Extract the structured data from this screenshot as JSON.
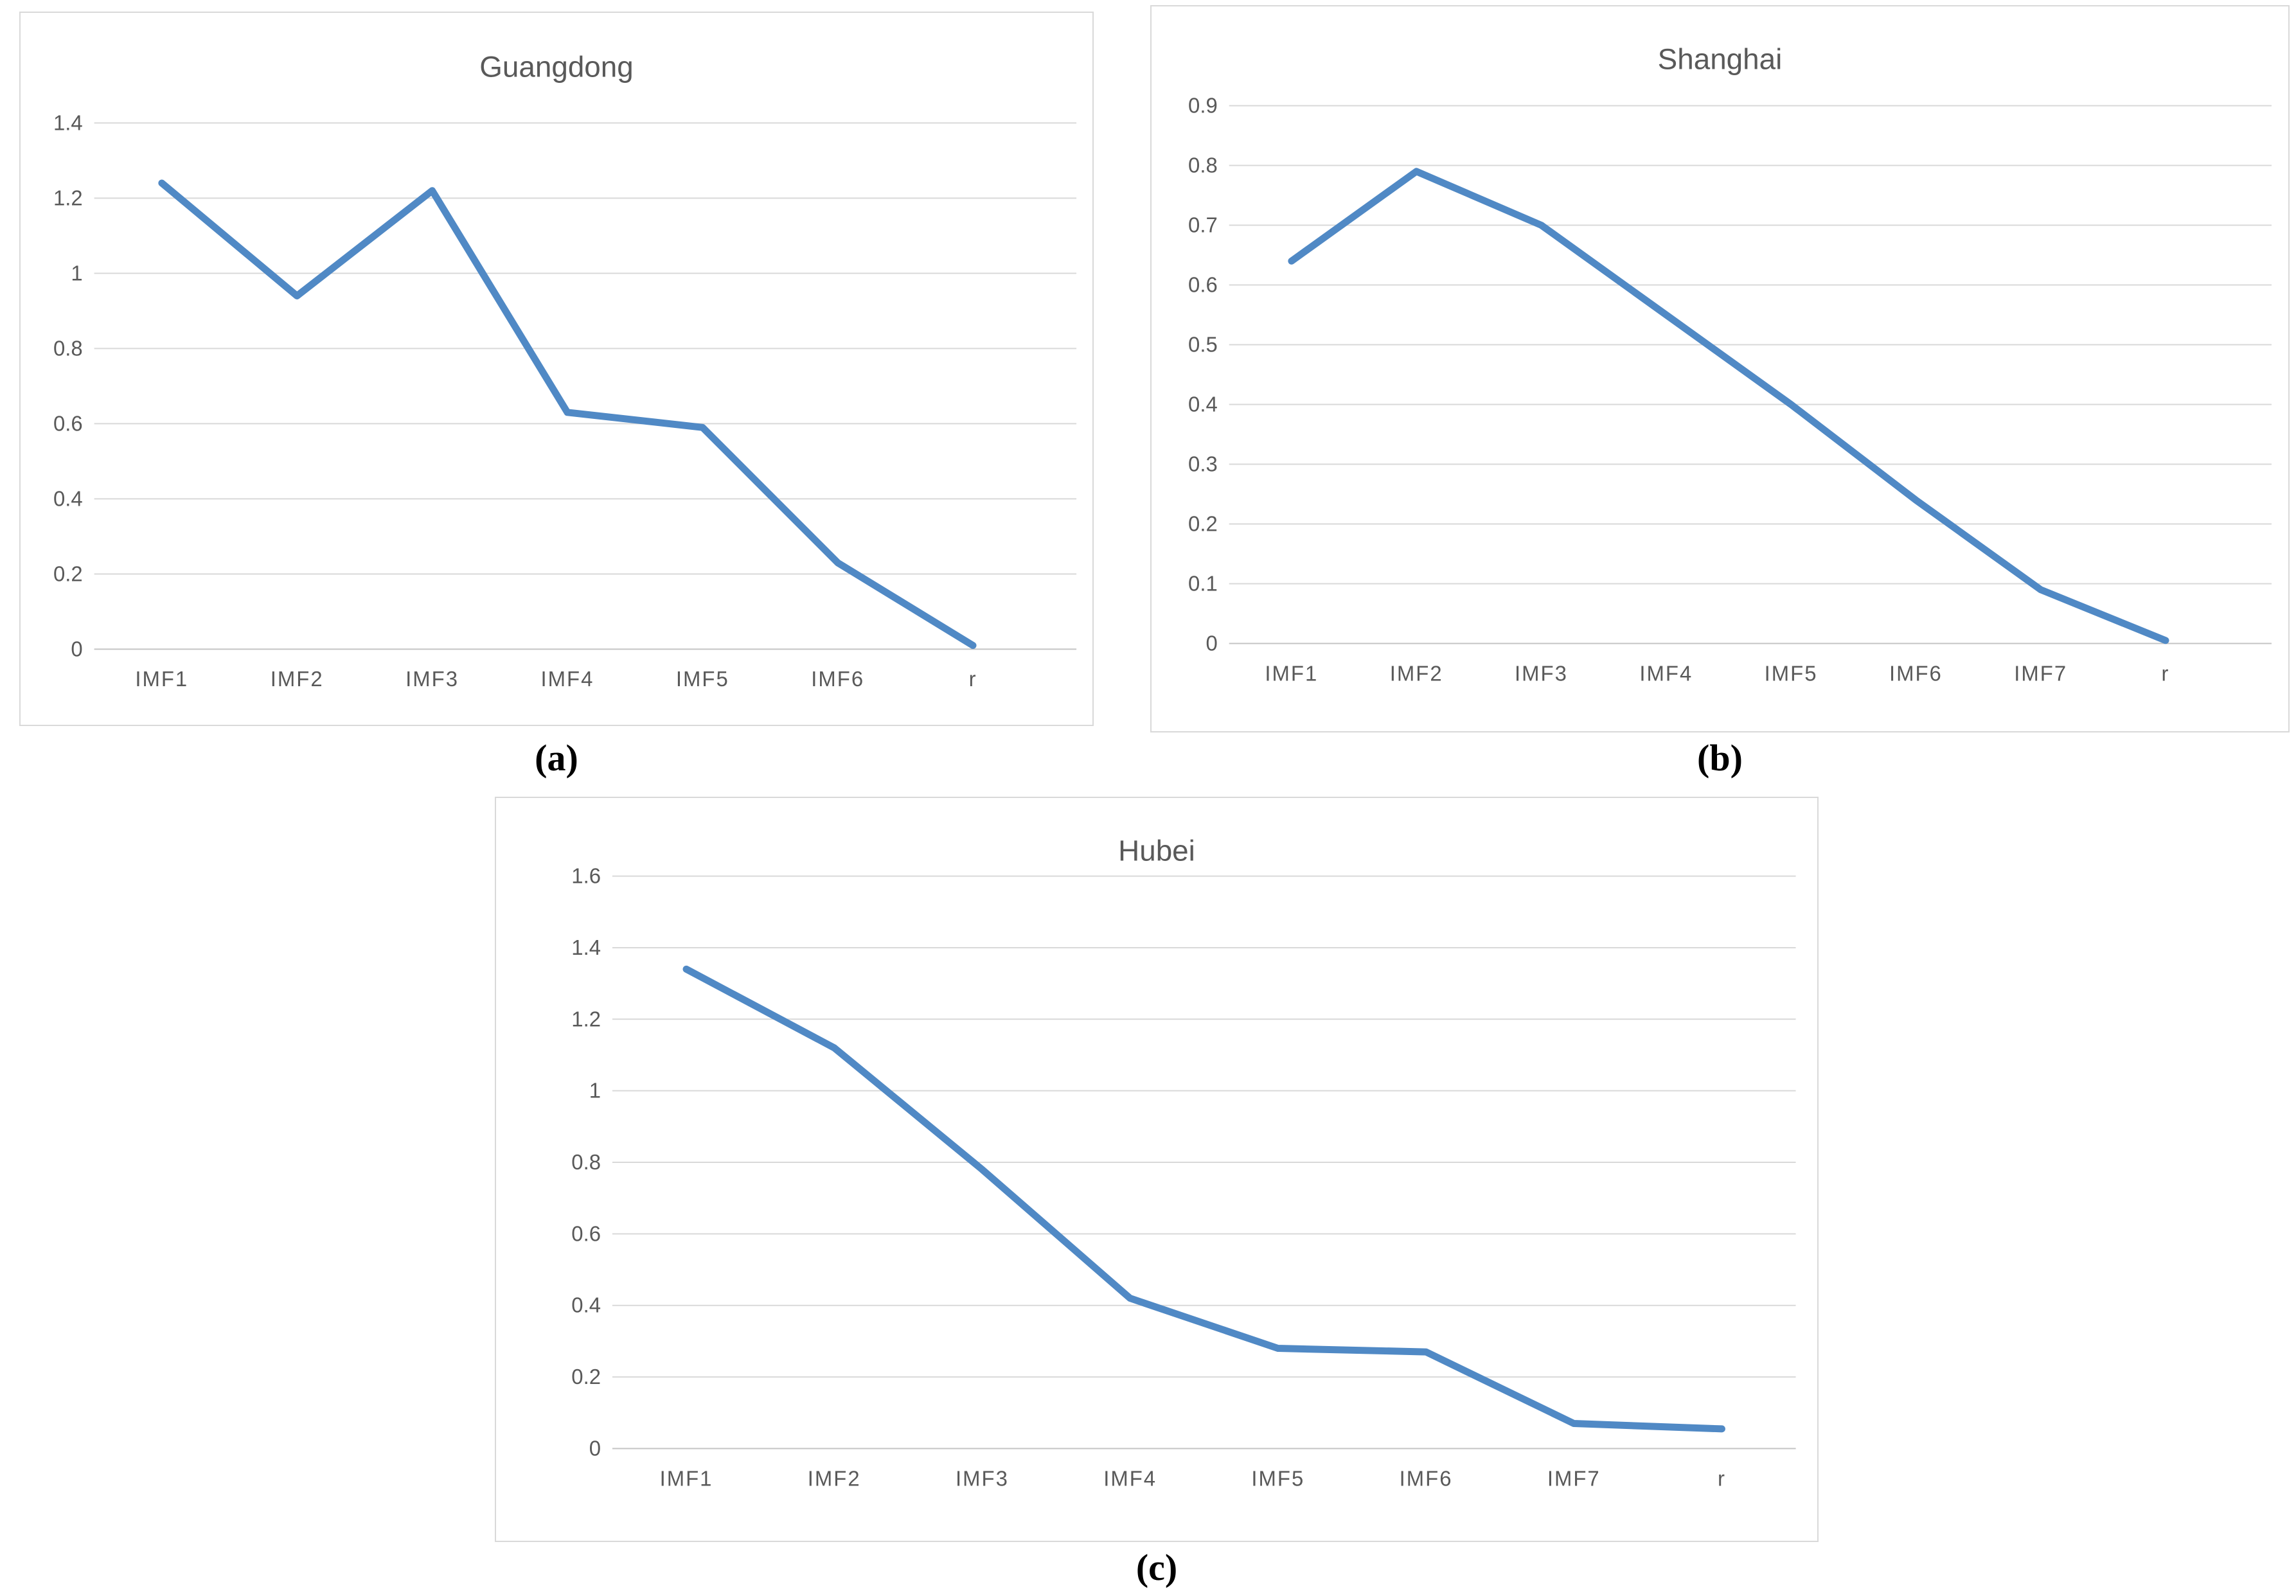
{
  "figure": {
    "background": "#ffffff",
    "panel_border_color": "#d9d9d9"
  },
  "style": {
    "line_color": "#5089c5",
    "grid_color": "#d9d9d9",
    "axis_color": "#c4c4c4",
    "title_color": "#595959",
    "tick_color": "#595959",
    "caption_color": "#000000"
  },
  "captions": [
    {
      "label": "(a)"
    },
    {
      "label": "(b)"
    },
    {
      "label": "(c)"
    }
  ],
  "chart_data": [
    {
      "id": "guangdong",
      "type": "line",
      "title": "Guangdong",
      "categories": [
        "IMF1",
        "IMF2",
        "IMF3",
        "IMF4",
        "IMF5",
        "IMF6",
        "r"
      ],
      "values": [
        1.24,
        0.94,
        1.22,
        0.63,
        0.59,
        0.23,
        0.01
      ],
      "xlabel": "",
      "ylabel": "",
      "ylim": [
        0,
        1.4
      ],
      "ytick_step": 0.2,
      "ytick_labels": [
        "0",
        "0.2",
        "0.4",
        "0.6",
        "0.8",
        "1",
        "1.2",
        "1.4"
      ],
      "grid": true,
      "legend": "none"
    },
    {
      "id": "shanghai",
      "type": "line",
      "title": "Shanghai",
      "categories": [
        "IMF1",
        "IMF2",
        "IMF3",
        "IMF4",
        "IMF5",
        "IMF6",
        "IMF7",
        "r"
      ],
      "values": [
        0.64,
        0.79,
        0.7,
        0.55,
        0.4,
        0.24,
        0.09,
        0.005
      ],
      "xlabel": "",
      "ylabel": "",
      "ylim": [
        0,
        0.9
      ],
      "ytick_step": 0.1,
      "ytick_labels": [
        "0",
        "0.1",
        "0.2",
        "0.3",
        "0.4",
        "0.5",
        "0.6",
        "0.7",
        "0.8",
        "0.9"
      ],
      "grid": true,
      "legend": "none"
    },
    {
      "id": "hubei",
      "type": "line",
      "title": "Hubei",
      "categories": [
        "IMF1",
        "IMF2",
        "IMF3",
        "IMF4",
        "IMF5",
        "IMF6",
        "IMF7",
        "r"
      ],
      "values": [
        1.34,
        1.12,
        0.78,
        0.42,
        0.28,
        0.27,
        0.07,
        0.055
      ],
      "xlabel": "",
      "ylabel": "",
      "ylim": [
        0,
        1.6
      ],
      "ytick_step": 0.2,
      "ytick_labels": [
        "0",
        "0.2",
        "0.4",
        "0.6",
        "0.8",
        "1",
        "1.2",
        "1.4",
        "1.6"
      ],
      "grid": true,
      "legend": "none"
    }
  ]
}
